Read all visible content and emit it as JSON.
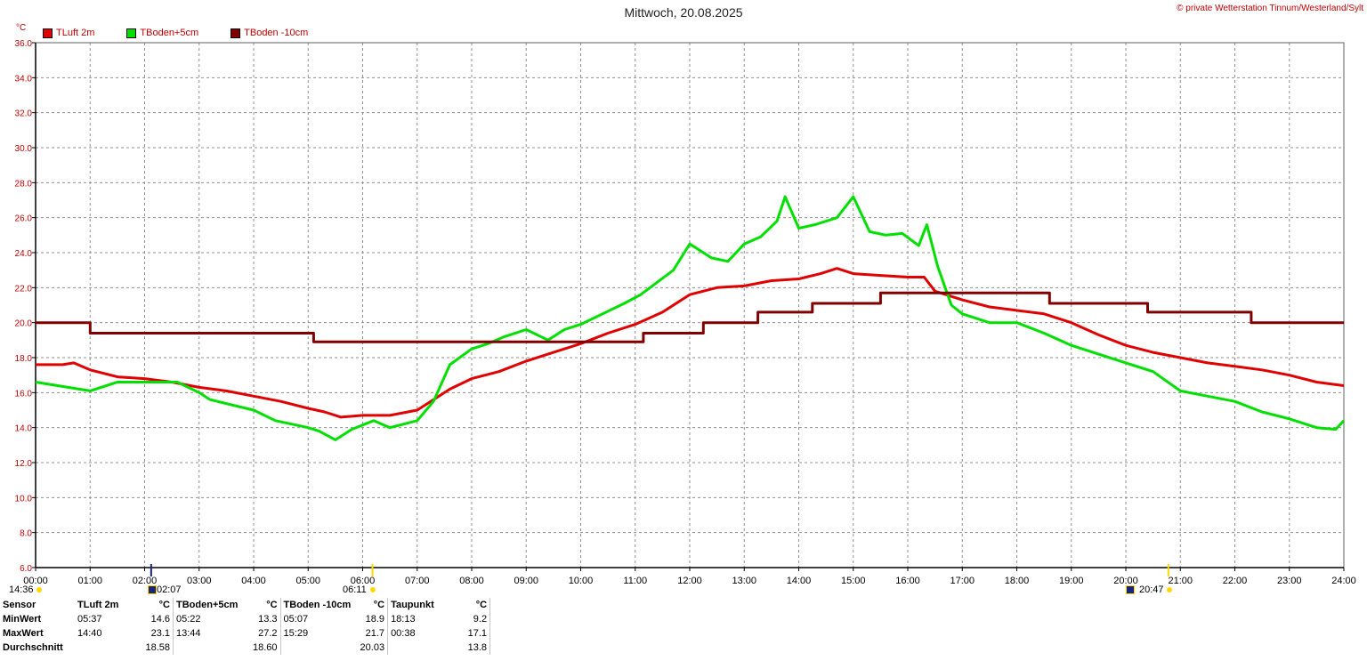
{
  "title": "Mittwoch, 20.08.2025",
  "copyright": "© private Wetterstation Tinnum/Westerland/Sylt",
  "unit": "°C",
  "legend": [
    {
      "label": "TLuft 2m",
      "color": "#e00000"
    },
    {
      "label": "TBoden+5cm",
      "color": "#00e000"
    },
    {
      "label": "TBoden -10cm",
      "color": "#800000"
    }
  ],
  "markers": {
    "sunrise_time": "06:11",
    "sunset_time": "20:47",
    "moonrise_time": "02:07",
    "left_time": "14:36"
  },
  "chart_data": {
    "type": "line",
    "title": "Mittwoch, 20.08.2025",
    "ylabel": "°C",
    "ylim": [
      6,
      36
    ],
    "xlim": [
      0,
      24
    ],
    "grid": true,
    "legend_placement": "top-left",
    "y_ticks": [
      "6.0",
      "8.0",
      "10.0",
      "12.0",
      "14.0",
      "16.0",
      "18.0",
      "20.0",
      "22.0",
      "24.0",
      "26.0",
      "28.0",
      "30.0",
      "32.0",
      "34.0",
      "36.0"
    ],
    "x_ticks": [
      "00:00",
      "01:00",
      "02:00",
      "03:00",
      "04:00",
      "05:00",
      "06:00",
      "07:00",
      "08:00",
      "09:00",
      "10:00",
      "11:00",
      "12:00",
      "13:00",
      "14:00",
      "15:00",
      "16:00",
      "17:00",
      "18:00",
      "19:00",
      "20:00",
      "21:00",
      "22:00",
      "23:00",
      "24:00"
    ],
    "series": [
      {
        "name": "TLuft 2m",
        "color": "#e00000",
        "x": [
          0,
          0.5,
          0.7,
          1.0,
          1.5,
          2.0,
          2.5,
          3.0,
          3.5,
          4.0,
          4.5,
          5.0,
          5.3,
          5.6,
          6.0,
          6.5,
          7.0,
          7.3,
          7.6,
          8.0,
          8.5,
          9.0,
          9.5,
          10.0,
          10.5,
          11.0,
          11.5,
          12.0,
          12.5,
          13.0,
          13.5,
          14.0,
          14.4,
          14.7,
          15.0,
          15.5,
          16.0,
          16.3,
          16.5,
          17.0,
          17.5,
          18.0,
          18.5,
          19.0,
          19.5,
          20.0,
          20.5,
          21.0,
          21.5,
          22.0,
          22.5,
          23.0,
          23.5,
          24.0
        ],
        "y": [
          17.6,
          17.6,
          17.7,
          17.3,
          16.9,
          16.8,
          16.6,
          16.3,
          16.1,
          15.8,
          15.5,
          15.1,
          14.9,
          14.6,
          14.7,
          14.7,
          15.0,
          15.6,
          16.2,
          16.8,
          17.2,
          17.8,
          18.3,
          18.8,
          19.4,
          19.9,
          20.6,
          21.6,
          22.0,
          22.1,
          22.4,
          22.5,
          22.8,
          23.1,
          22.8,
          22.7,
          22.6,
          22.6,
          21.8,
          21.3,
          20.9,
          20.7,
          20.5,
          20.0,
          19.3,
          18.7,
          18.3,
          18.0,
          17.7,
          17.5,
          17.3,
          17.0,
          16.6,
          16.4
        ]
      },
      {
        "name": "TBoden+5cm",
        "color": "#00e000",
        "x": [
          0,
          1.0,
          1.5,
          2.0,
          2.6,
          3.0,
          3.2,
          4.0,
          4.4,
          5.0,
          5.2,
          5.5,
          5.8,
          6.2,
          6.5,
          7.0,
          7.3,
          7.6,
          8.0,
          8.3,
          8.6,
          9.0,
          9.4,
          9.7,
          10.0,
          10.4,
          10.8,
          11.1,
          11.4,
          11.7,
          12.0,
          12.4,
          12.7,
          13.0,
          13.3,
          13.6,
          13.75,
          14.0,
          14.3,
          14.7,
          15.0,
          15.3,
          15.6,
          15.9,
          16.2,
          16.35,
          16.55,
          16.8,
          17.0,
          17.5,
          18.0,
          18.5,
          19.0,
          19.5,
          20.0,
          20.5,
          21.0,
          21.5,
          22.0,
          22.5,
          23.0,
          23.5,
          23.85,
          24.0
        ],
        "y": [
          16.6,
          16.1,
          16.6,
          16.6,
          16.6,
          16.0,
          15.6,
          15.0,
          14.4,
          14.0,
          13.8,
          13.3,
          13.9,
          14.4,
          14.0,
          14.4,
          15.5,
          17.6,
          18.5,
          18.8,
          19.2,
          19.6,
          19.0,
          19.6,
          19.9,
          20.5,
          21.1,
          21.6,
          22.3,
          23.0,
          24.5,
          23.7,
          23.5,
          24.5,
          24.9,
          25.8,
          27.2,
          25.4,
          25.6,
          26.0,
          27.2,
          25.2,
          25.0,
          25.1,
          24.4,
          25.6,
          23.2,
          21.0,
          20.5,
          20.0,
          20.0,
          19.4,
          18.7,
          18.2,
          17.7,
          17.2,
          16.1,
          15.8,
          15.5,
          14.9,
          14.5,
          14.0,
          13.9,
          14.4
        ]
      },
      {
        "name": "TBoden -10cm",
        "color": "#800000",
        "x": [
          0,
          1.0,
          1.0,
          5.1,
          5.1,
          11.15,
          11.15,
          12.25,
          12.25,
          13.25,
          13.25,
          14.25,
          14.25,
          15.5,
          15.5,
          18.6,
          18.6,
          20.4,
          20.4,
          22.3,
          22.3,
          24.0
        ],
        "y": [
          20.0,
          20.0,
          19.4,
          19.4,
          18.9,
          18.9,
          19.4,
          19.4,
          20.0,
          20.0,
          20.6,
          20.6,
          21.1,
          21.1,
          21.7,
          21.7,
          21.1,
          21.1,
          20.6,
          20.6,
          20.0,
          20.0
        ]
      }
    ]
  },
  "stats": {
    "columns": [
      "Sensor",
      "TLuft 2m",
      "°C",
      "TBoden+5cm",
      "°C",
      "TBoden -10cm",
      "°C",
      "Taupunkt",
      "°C"
    ],
    "rows": [
      {
        "label": "MinWert",
        "cells": [
          "05:37",
          "14.6",
          "05:22",
          "13.3",
          "05:07",
          "18.9",
          "18:13",
          "9.2"
        ]
      },
      {
        "label": "MaxWert",
        "cells": [
          "14:40",
          "23.1",
          "13:44",
          "27.2",
          "15:29",
          "21.7",
          "00:38",
          "17.1"
        ]
      },
      {
        "label": "Durchschnitt",
        "cells": [
          "",
          "18.58",
          "",
          "18.60",
          "",
          "20.03",
          "",
          "13.8"
        ]
      }
    ]
  }
}
